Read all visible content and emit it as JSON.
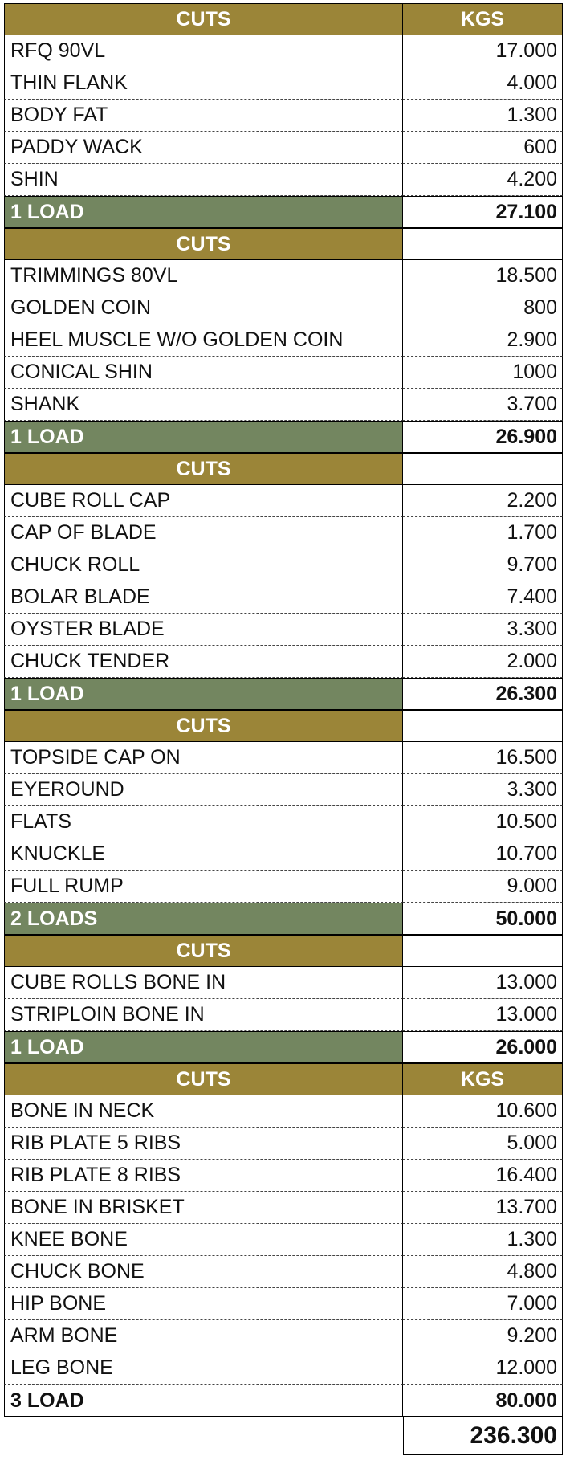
{
  "sections": [
    {
      "header": {
        "cuts": "CUTS",
        "kgs": "KGS"
      },
      "items": [
        {
          "name": "RFQ 90VL",
          "kgs": "17.000"
        },
        {
          "name": "THIN FLANK",
          "kgs": "4.000"
        },
        {
          "name": "BODY FAT",
          "kgs": "1.300"
        },
        {
          "name": "PADDY WACK",
          "kgs": "600"
        },
        {
          "name": "SHIN",
          "kgs": "4.200"
        }
      ],
      "total": {
        "label": "1 LOAD",
        "kgs": "27.100"
      }
    },
    {
      "header": {
        "cuts": "CUTS",
        "kgs": ""
      },
      "items": [
        {
          "name": "TRIMMINGS 80VL",
          "kgs": "18.500"
        },
        {
          "name": "GOLDEN COIN",
          "kgs": "800"
        },
        {
          "name": "HEEL MUSCLE W/O GOLDEN COIN",
          "kgs": "2.900"
        },
        {
          "name": "CONICAL SHIN",
          "kgs": "1000"
        },
        {
          "name": "SHANK",
          "kgs": "3.700"
        }
      ],
      "total": {
        "label": "1 LOAD",
        "kgs": "26.900"
      }
    },
    {
      "header": {
        "cuts": "CUTS",
        "kgs": ""
      },
      "items": [
        {
          "name": "CUBE ROLL CAP",
          "kgs": "2.200"
        },
        {
          "name": "CAP OF BLADE",
          "kgs": "1.700"
        },
        {
          "name": "CHUCK ROLL",
          "kgs": "9.700"
        },
        {
          "name": "BOLAR BLADE",
          "kgs": "7.400"
        },
        {
          "name": "OYSTER BLADE",
          "kgs": "3.300"
        },
        {
          "name": "CHUCK TENDER",
          "kgs": "2.000"
        }
      ],
      "total": {
        "label": "1 LOAD",
        "kgs": "26.300"
      }
    },
    {
      "header": {
        "cuts": "CUTS",
        "kgs": ""
      },
      "items": [
        {
          "name": "TOPSIDE CAP ON",
          "kgs": "16.500"
        },
        {
          "name": "EYEROUND",
          "kgs": "3.300"
        },
        {
          "name": "FLATS",
          "kgs": "10.500"
        },
        {
          "name": "KNUCKLE",
          "kgs": "10.700"
        },
        {
          "name": "FULL RUMP",
          "kgs": "9.000"
        }
      ],
      "total": {
        "label": "2 LOADS",
        "kgs": "50.000"
      }
    },
    {
      "header": {
        "cuts": "CUTS",
        "kgs": ""
      },
      "items": [
        {
          "name": "CUBE ROLLS BONE IN",
          "kgs": "13.000"
        },
        {
          "name": "STRIPLOIN BONE IN",
          "kgs": "13.000"
        }
      ],
      "total": {
        "label": "1 LOAD",
        "kgs": "26.000"
      }
    },
    {
      "header": {
        "cuts": "CUTS",
        "kgs": "KGS"
      },
      "items": [
        {
          "name": "BONE IN NECK",
          "kgs": "10.600"
        },
        {
          "name": "RIB PLATE 5 RIBS",
          "kgs": "5.000"
        },
        {
          "name": "RIB PLATE 8 RIBS",
          "kgs": "16.400"
        },
        {
          "name": "BONE IN BRISKET",
          "kgs": "13.700"
        },
        {
          "name": "KNEE BONE",
          "kgs": "1.300"
        },
        {
          "name": "CHUCK BONE",
          "kgs": "4.800"
        },
        {
          "name": "HIP BONE",
          "kgs": "7.000"
        },
        {
          "name": "ARM BONE",
          "kgs": "9.200"
        },
        {
          "name": "LEG BONE",
          "kgs": "12.000"
        }
      ],
      "total": {
        "label": "3 LOAD",
        "kgs": "80.000",
        "plain": true
      }
    }
  ],
  "grand_total": "236.300",
  "colors": {
    "header_gold": "#9b8538",
    "total_green": "#738660"
  }
}
